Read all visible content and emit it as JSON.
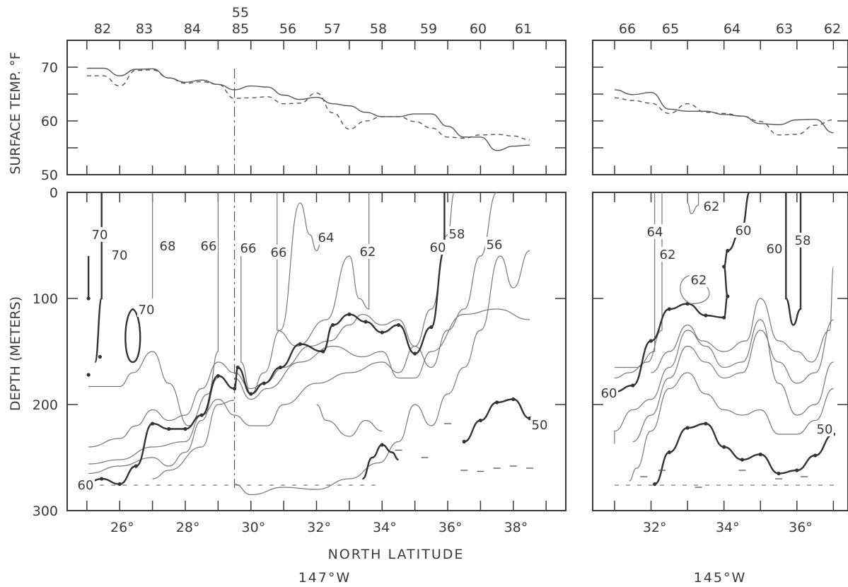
{
  "chart_data": [
    {
      "type": "line",
      "panel": "147°W surface temperature",
      "ylabel": "SURFACE TEMP. °F",
      "ylim": [
        50,
        75
      ],
      "yticks": [
        "70",
        "60",
        "50"
      ],
      "station_labels": [
        "82",
        "83",
        "84",
        "85",
        "56",
        "57",
        "58",
        "59",
        "60",
        "61"
      ],
      "station_label_extra": "55",
      "x": [
        24.9,
        25.4,
        25.9,
        26.4,
        26.9,
        27.4,
        27.9,
        28.4,
        28.9,
        29.4,
        29.9,
        30.4,
        30.9,
        31.4,
        31.9,
        32.4,
        32.9,
        33.4,
        33.9,
        34.4,
        34.9,
        35.4,
        35.9,
        36.4,
        36.9,
        37.4,
        37.9,
        38.4
      ],
      "series": [
        {
          "style": "solid",
          "values": [
            69.8,
            69.8,
            68.4,
            69.6,
            69.7,
            68.0,
            67.2,
            67.6,
            66.8,
            65.8,
            66.5,
            66.3,
            64.8,
            64.0,
            64.4,
            63.2,
            62.8,
            61.6,
            60.8,
            60.8,
            61.3,
            61.3,
            59.0,
            57.0,
            57.0,
            54.5,
            55.3,
            55.5
          ]
        },
        {
          "style": "dashed",
          "values": [
            68.4,
            68.4,
            66.5,
            69.4,
            69.5,
            68.0,
            67.0,
            67.3,
            66.8,
            64.2,
            64.3,
            64.5,
            63.2,
            63.3,
            65.2,
            61.5,
            58.5,
            60.0,
            60.8,
            60.8,
            59.9,
            58.7,
            57.0,
            56.8,
            57.4,
            57.5,
            57.2,
            56.5
          ]
        }
      ]
    },
    {
      "type": "line",
      "panel": "145°W surface temperature",
      "ylim": [
        50,
        75
      ],
      "station_labels": [
        "66",
        "65",
        "64",
        "63",
        "62"
      ],
      "x": [
        30.9,
        31.4,
        31.9,
        32.4,
        32.9,
        33.4,
        33.9,
        34.4,
        34.9,
        35.4,
        35.9,
        36.4,
        36.9
      ],
      "series": [
        {
          "style": "solid",
          "values": [
            65.8,
            64.9,
            65.3,
            62.2,
            61.8,
            61.8,
            61.2,
            60.9,
            59.5,
            59.3,
            60.2,
            60.3,
            57.8
          ]
        },
        {
          "style": "dashed",
          "values": [
            64.3,
            63.8,
            63.3,
            61.4,
            63.2,
            61.6,
            61.4,
            60.9,
            59.9,
            57.4,
            57.5,
            59.2,
            60.2
          ]
        }
      ]
    },
    {
      "type": "contour",
      "panel": "147°W depth section",
      "ylabel": "DEPTH (METERS)",
      "xlabel": "NORTH LATITUDE",
      "ylim": [
        0,
        300
      ],
      "xlim": [
        24.3,
        39.5
      ],
      "yticks": [
        "0",
        "100",
        "200",
        "300"
      ],
      "xticks": [
        "26°",
        "28°",
        "30°",
        "32°",
        "34°",
        "36°",
        "38°"
      ],
      "contour_labels": [
        "70",
        "70",
        "70",
        "68",
        "66",
        "66",
        "66",
        "64",
        "62",
        "60",
        "58",
        "56",
        "60",
        "50"
      ],
      "footer": "147°W"
    },
    {
      "type": "contour",
      "panel": "145°W depth section",
      "ylim": [
        0,
        300
      ],
      "xlim": [
        30.3,
        37.3
      ],
      "xticks": [
        "32°",
        "34°",
        "36°"
      ],
      "contour_labels": [
        "62",
        "60",
        "64",
        "62",
        "62",
        "60",
        "58",
        "60",
        "50"
      ],
      "footer": "145°W"
    }
  ]
}
